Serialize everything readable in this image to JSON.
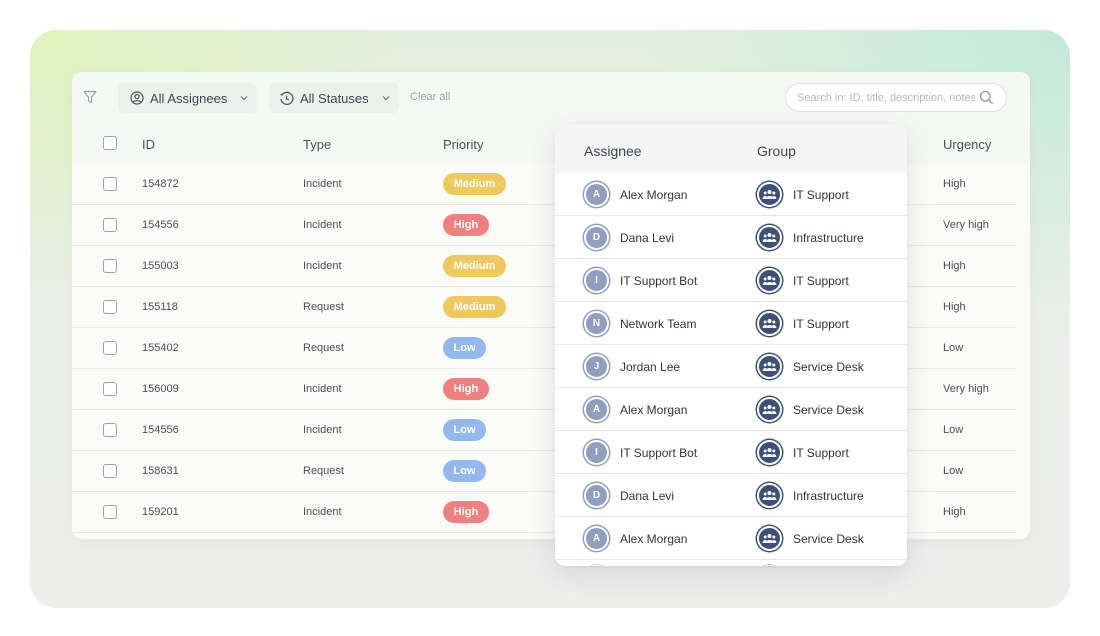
{
  "toolbar": {
    "filter_icon": "filter-icon",
    "assignee_filter_label": "All Assignees",
    "assignee_filter_icon": "user-circle-icon",
    "status_filter_label": "All Statuses",
    "status_filter_icon": "clock-icon",
    "clear_all_label": "Clear all",
    "search_placeholder": "Search in: ID, title, description, notes",
    "search_icon": "search-icon"
  },
  "table": {
    "headers": {
      "id": "ID",
      "type": "Type",
      "priority": "Priority",
      "urgency": "Urgency"
    },
    "rows": [
      {
        "id": "154872",
        "type": "Incident",
        "priority": "Medium",
        "urgency": "High"
      },
      {
        "id": "154556",
        "type": "Incident",
        "priority": "High",
        "urgency": "Very high"
      },
      {
        "id": "155003",
        "type": "Incident",
        "priority": "Medium",
        "urgency": "High"
      },
      {
        "id": "155118",
        "type": "Request",
        "priority": "Medium",
        "urgency": "High"
      },
      {
        "id": "155402",
        "type": "Request",
        "priority": "Low",
        "urgency": "Low"
      },
      {
        "id": "156009",
        "type": "Incident",
        "priority": "High",
        "urgency": "Very high"
      },
      {
        "id": "154556",
        "type": "Incident",
        "priority": "Low",
        "urgency": "Low"
      },
      {
        "id": "158631",
        "type": "Request",
        "priority": "Low",
        "urgency": "Low"
      },
      {
        "id": "159201",
        "type": "Incident",
        "priority": "High",
        "urgency": "High"
      }
    ]
  },
  "priority_colors": {
    "Medium": "#efc85e",
    "High": "#f08080",
    "Low": "#93b8ee"
  },
  "assignee_dropdown": {
    "headers": {
      "assignee": "Assignee",
      "group": "Group"
    },
    "group_icon": "group-icon",
    "items": [
      {
        "initial": "A",
        "name": "Alex Morgan",
        "group": "IT Support"
      },
      {
        "initial": "D",
        "name": "Dana Levi",
        "group": "Infrastructure"
      },
      {
        "initial": "I",
        "name": "IT Support Bot",
        "group": "IT Support"
      },
      {
        "initial": "N",
        "name": "Network Team",
        "group": "IT Support"
      },
      {
        "initial": "J",
        "name": "Jordan Lee",
        "group": "Service Desk"
      },
      {
        "initial": "A",
        "name": "Alex Morgan",
        "group": "Service Desk"
      },
      {
        "initial": "I",
        "name": "IT Support Bot",
        "group": "IT Support"
      },
      {
        "initial": "D",
        "name": "Dana Levi",
        "group": "Infrastructure"
      },
      {
        "initial": "A",
        "name": "Alex Morgan",
        "group": "Service Desk"
      }
    ]
  }
}
